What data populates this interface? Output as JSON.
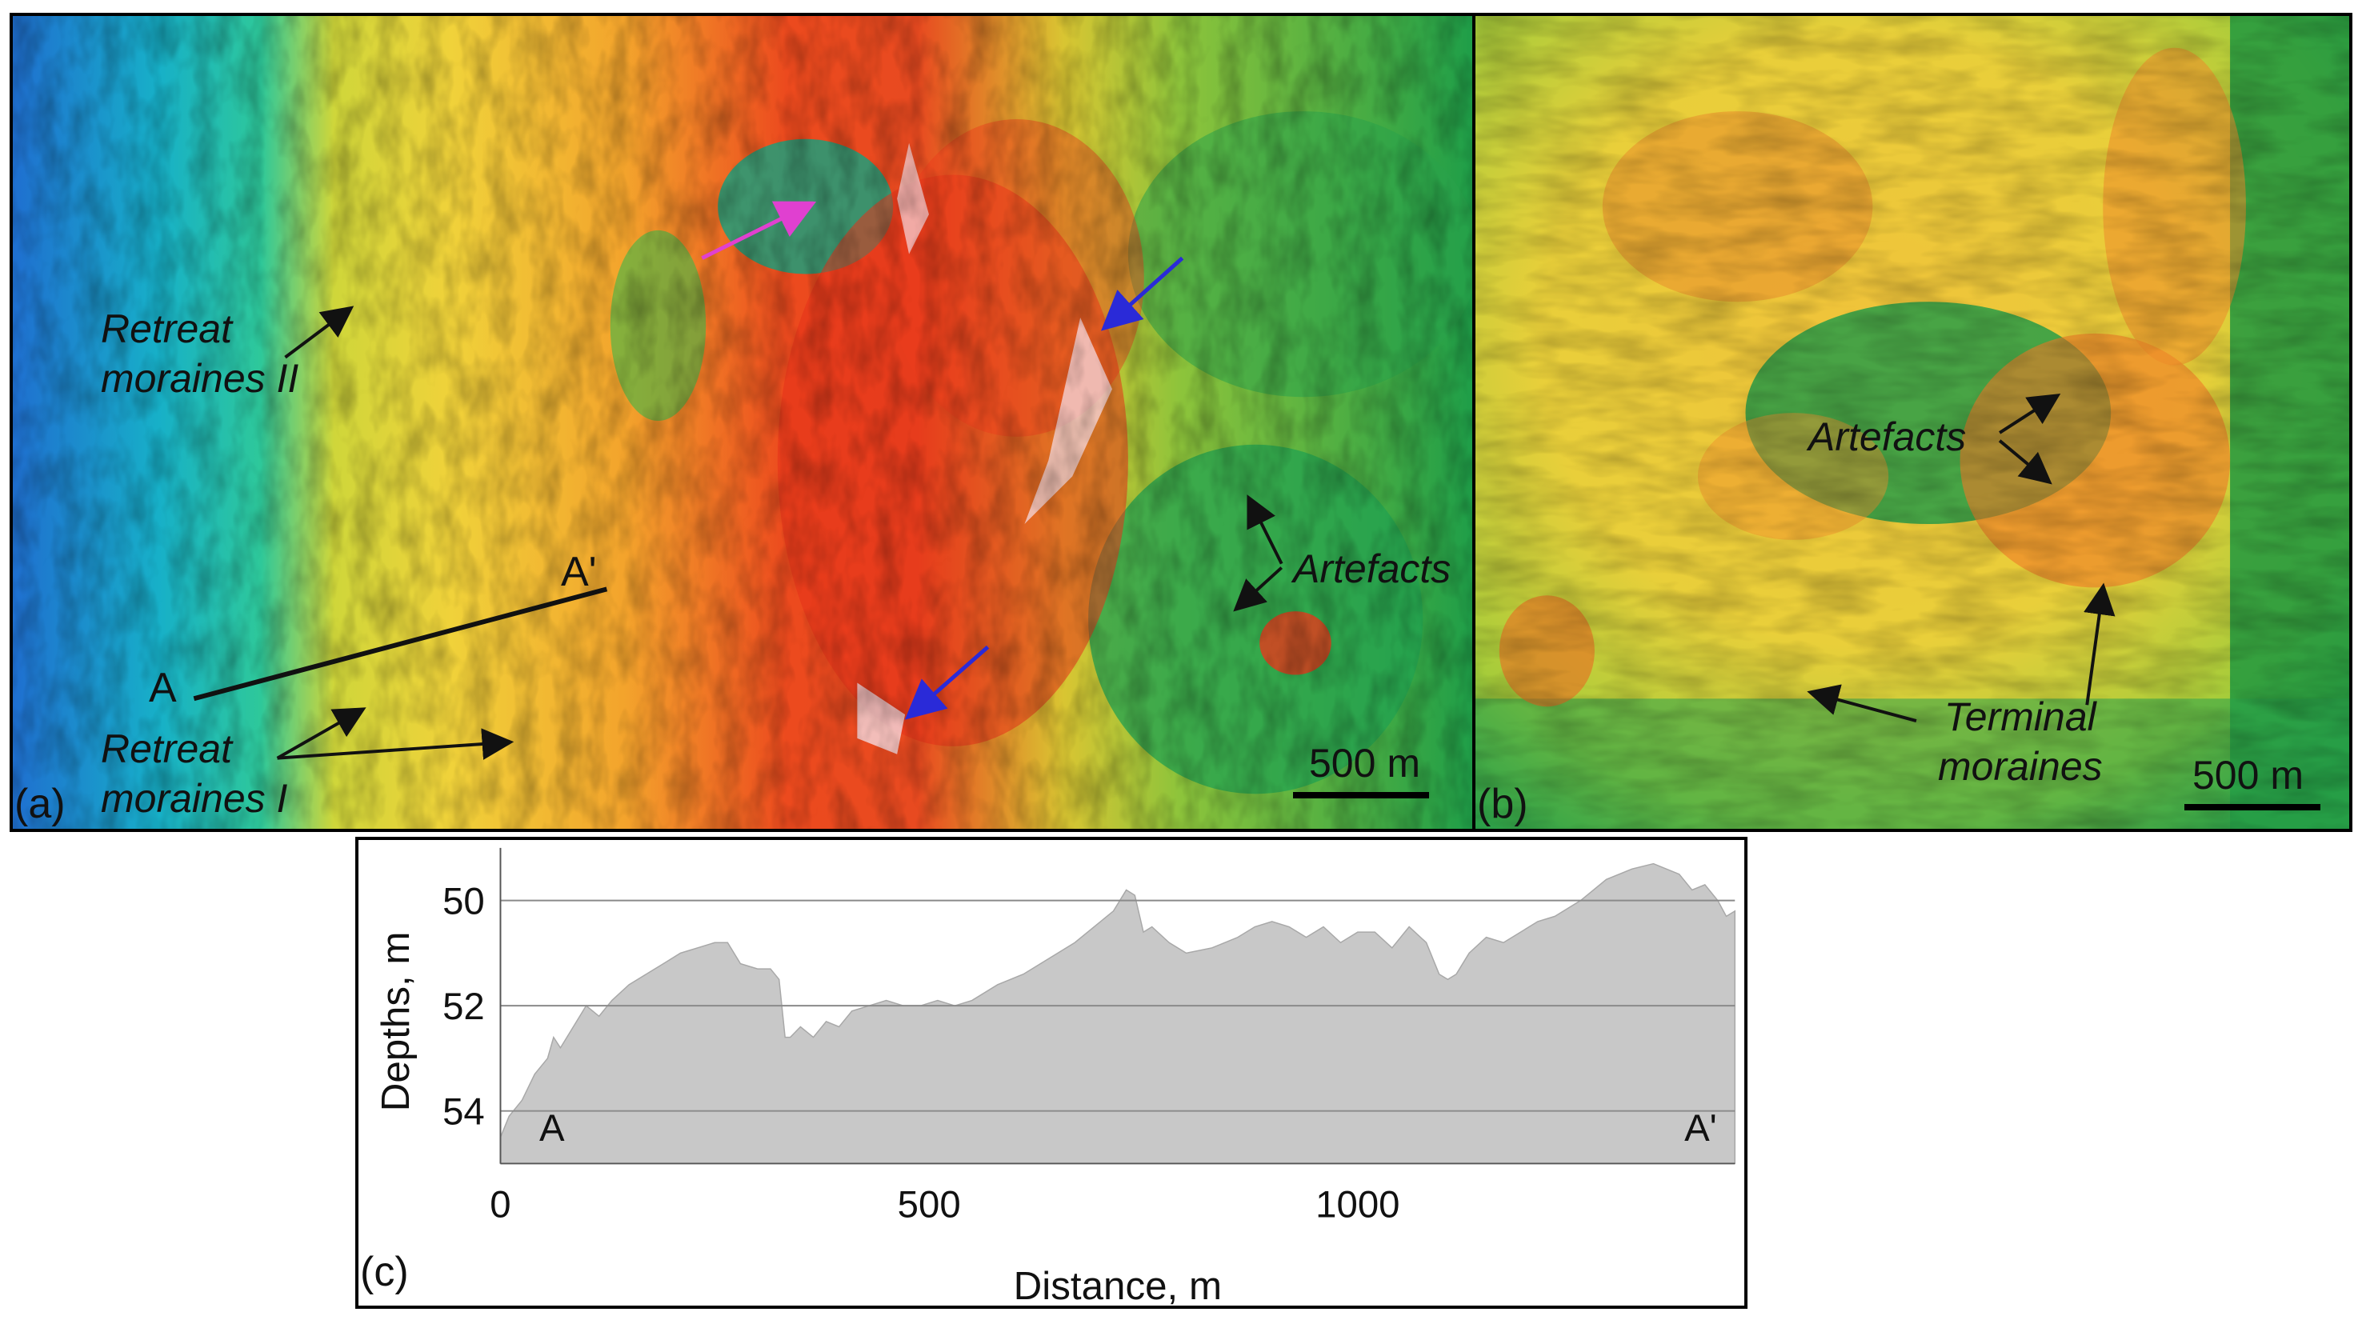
{
  "panel_a": {
    "tag": "(a)",
    "labels": {
      "retreat_moraines_ii": [
        "Retreat",
        "moraines II"
      ],
      "retreat_moraines_i": [
        "Retreat",
        "moraines I"
      ],
      "artefacts": "Artefacts",
      "point_a": "A",
      "point_a_prime": "A'"
    },
    "scale_bar": "500 m"
  },
  "panel_b": {
    "tag": "(b)",
    "labels": {
      "artefacts": "Artefacts",
      "terminal_moraines": [
        "Terminal",
        "moraines"
      ]
    },
    "scale_bar": "500 m"
  },
  "panel_c": {
    "tag": "(c)"
  },
  "colors": {
    "arrow_black": "#111111",
    "arrow_blue": "#2a2ad8",
    "arrow_magenta": "#e040d0",
    "profile_fill": "#c8c8c8",
    "gridline": "#8a8a8a"
  },
  "chart_data": {
    "type": "area",
    "title": "",
    "xlabel": "Distance, m",
    "ylabel": "Depths, m",
    "xlim": [
      0,
      1440
    ],
    "ylim": [
      55,
      49
    ],
    "y_inverted": true,
    "xticks": [
      0,
      500,
      1000
    ],
    "yticks": [
      50,
      52,
      54
    ],
    "grid": "horizontal",
    "annotations": [
      {
        "text": "A",
        "x": 60,
        "y": 54.3
      },
      {
        "text": "A'",
        "x": 1400,
        "y": 54.3
      }
    ],
    "series": [
      {
        "x": [
          0,
          10,
          25,
          40,
          55,
          62,
          70,
          85,
          100,
          115,
          130,
          150,
          170,
          190,
          210,
          230,
          250,
          265,
          280,
          300,
          315,
          325,
          332,
          338,
          350,
          365,
          380,
          395,
          410,
          430,
          450,
          470,
          490,
          510,
          530,
          550,
          580,
          610,
          640,
          670,
          700,
          715,
          730,
          740,
          750,
          760,
          780,
          800,
          830,
          860,
          880,
          900,
          920,
          940,
          960,
          980,
          1000,
          1020,
          1040,
          1060,
          1080,
          1095,
          1105,
          1115,
          1130,
          1150,
          1170,
          1190,
          1210,
          1230,
          1260,
          1290,
          1320,
          1345,
          1360,
          1375,
          1390,
          1405,
          1420,
          1430,
          1440
        ],
        "y": [
          54.5,
          54.1,
          53.8,
          53.3,
          53.0,
          52.6,
          52.8,
          52.4,
          52.0,
          52.2,
          51.9,
          51.6,
          51.4,
          51.2,
          51.0,
          50.9,
          50.8,
          50.8,
          51.2,
          51.3,
          51.3,
          51.5,
          52.6,
          52.6,
          52.4,
          52.6,
          52.3,
          52.4,
          52.1,
          52.0,
          51.9,
          52.0,
          52.0,
          51.9,
          52.0,
          51.9,
          51.6,
          51.4,
          51.1,
          50.8,
          50.4,
          50.2,
          49.8,
          49.9,
          50.6,
          50.5,
          50.8,
          51.0,
          50.9,
          50.7,
          50.5,
          50.4,
          50.5,
          50.7,
          50.5,
          50.8,
          50.6,
          50.6,
          50.9,
          50.5,
          50.8,
          51.4,
          51.5,
          51.4,
          51.0,
          50.7,
          50.8,
          50.6,
          50.4,
          50.3,
          50.0,
          49.6,
          49.4,
          49.3,
          49.4,
          49.5,
          49.8,
          49.7,
          50.0,
          50.3,
          50.2
        ]
      }
    ]
  }
}
